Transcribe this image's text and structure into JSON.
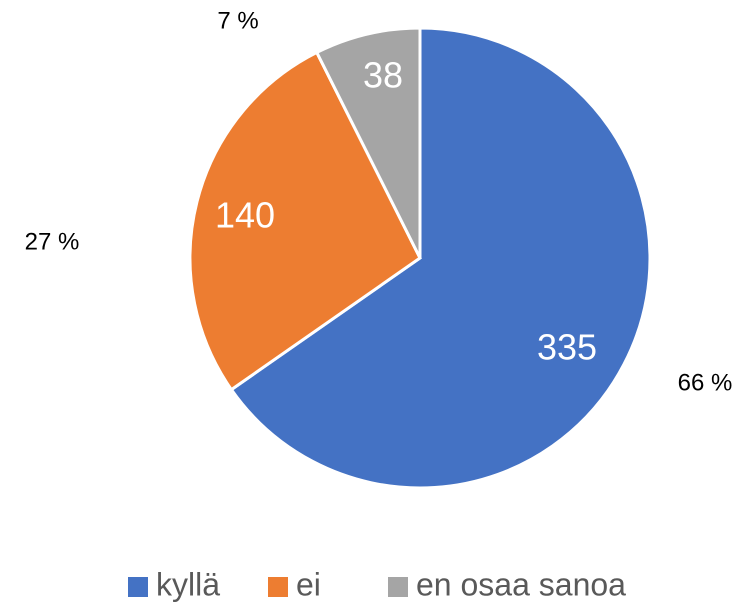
{
  "chart_data": {
    "type": "pie",
    "categories": [
      "kyllä",
      "ei",
      "en osaa sanoa"
    ],
    "values": [
      335,
      140,
      38
    ],
    "percent_labels": [
      "66 %",
      "27 %",
      "7 %"
    ],
    "colors": [
      "#4472c4",
      "#ed7d31",
      "#a5a5a5"
    ],
    "legend": "bottom"
  }
}
